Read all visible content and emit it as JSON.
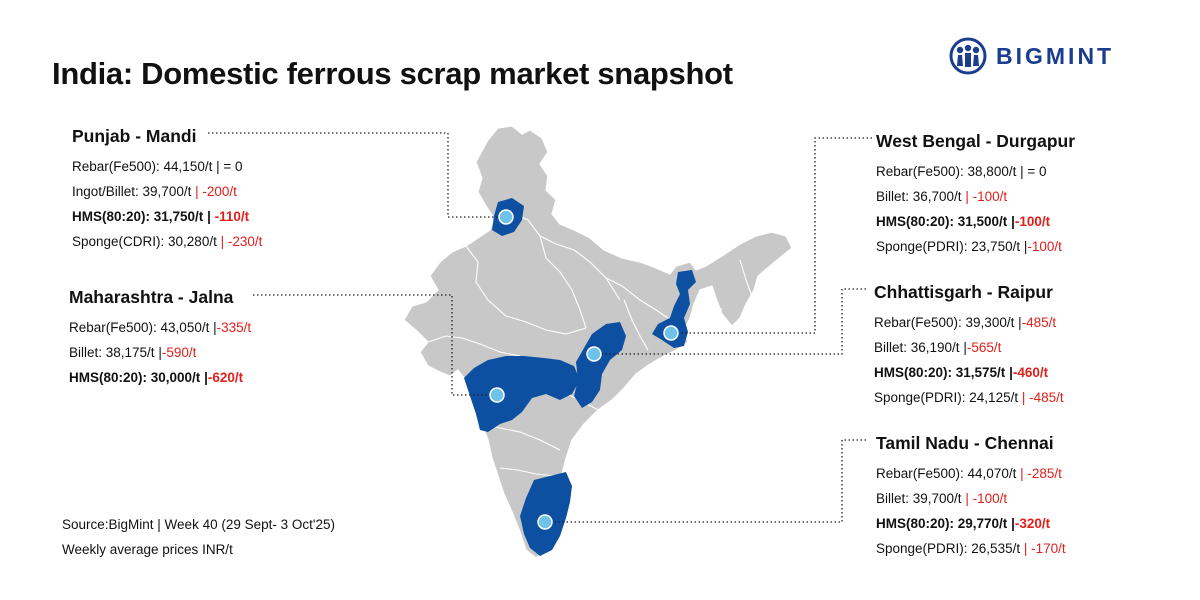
{
  "title": "India: Domestic ferrous scrap market snapshot",
  "logo": {
    "text": "BIGMINT",
    "icon": "bigmint-people-logo",
    "color": "#1b3d8f"
  },
  "colors": {
    "map_base": "#c8c8c8",
    "map_highlight": "#0d4fa0",
    "marker": "#6fc3ea",
    "negative": "#e0201b"
  },
  "regions": {
    "punjab": {
      "heading": "Punjab - Mandi",
      "lines": [
        {
          "label": "Rebar(Fe500): 44,150/t",
          "sep": " | ",
          "change": "= 0",
          "negative": false,
          "bold": false
        },
        {
          "label": "Ingot/Billet: 39,700/t",
          "sep": " | ",
          "change": "-200/t",
          "negative": true,
          "bold": false
        },
        {
          "label": "HMS(80:20): 31,750/t",
          "sep": " | ",
          "change": "-110/t",
          "negative": true,
          "bold": true
        },
        {
          "label": "Sponge(CDRI): 30,280/t",
          "sep": " | ",
          "change": "-230/t",
          "negative": true,
          "bold": false
        }
      ]
    },
    "maharashtra": {
      "heading": "Maharashtra - Jalna",
      "lines": [
        {
          "label": "Rebar(Fe500): 43,050/t",
          "sep": " |",
          "change": "-335/t",
          "negative": true,
          "bold": false
        },
        {
          "label": "Billet: 38,175/t",
          "sep": " |",
          "change": "-590/t",
          "negative": true,
          "bold": false
        },
        {
          "label": "HMS(80:20): 30,000/t",
          "sep": " |",
          "change": "-620/t",
          "negative": true,
          "bold": true
        }
      ]
    },
    "west_bengal": {
      "heading": "West Bengal - Durgapur",
      "lines": [
        {
          "label": "Rebar(Fe500): 38,800/t",
          "sep": " | ",
          "change": "= 0",
          "negative": false,
          "bold": false
        },
        {
          "label": "Billet: 36,700/t",
          "sep": " | ",
          "change": "-100/t",
          "negative": true,
          "bold": false
        },
        {
          "label": "HMS(80:20): 31,500/t",
          "sep": " |",
          "change": "-100/t",
          "negative": true,
          "bold": true
        },
        {
          "label": "Sponge(PDRI): 23,750/t",
          "sep": " |",
          "change": "-100/t",
          "negative": true,
          "bold": false
        }
      ]
    },
    "chhattisgarh": {
      "heading": "Chhattisgarh - Raipur",
      "lines": [
        {
          "label": "Rebar(Fe500): 39,300/t",
          "sep": " |",
          "change": "-485/t",
          "negative": true,
          "bold": false
        },
        {
          "label": "Billet: 36,190/t",
          "sep": " |",
          "change": "-565/t",
          "negative": true,
          "bold": false
        },
        {
          "label": "HMS(80:20): 31,575/t",
          "sep": " |",
          "change": "-460/t",
          "negative": true,
          "bold": true
        },
        {
          "label": "Sponge(PDRI): 24,125/t",
          "sep": " | ",
          "change": "-485/t",
          "negative": true,
          "bold": false
        }
      ]
    },
    "tamil_nadu": {
      "heading": "Tamil Nadu - Chennai",
      "lines": [
        {
          "label": "Rebar(Fe500): 44,070/t",
          "sep": " | ",
          "change": "-285/t",
          "negative": true,
          "bold": false
        },
        {
          "label": "Billet: 39,700/t",
          "sep": " | ",
          "change": "-100/t",
          "negative": true,
          "bold": false
        },
        {
          "label": "HMS(80:20): 29,770/t",
          "sep": " |",
          "change": "-320/t",
          "negative": true,
          "bold": true
        },
        {
          "label": "Sponge(PDRI): 26,535/t",
          "sep": " | ",
          "change": "-170/t",
          "negative": true,
          "bold": false
        }
      ]
    }
  },
  "footer": {
    "source": "Source:BigMint | Week 40 (29 Sept- 3 Oct'25)",
    "unit": "Weekly average prices INR/t"
  }
}
